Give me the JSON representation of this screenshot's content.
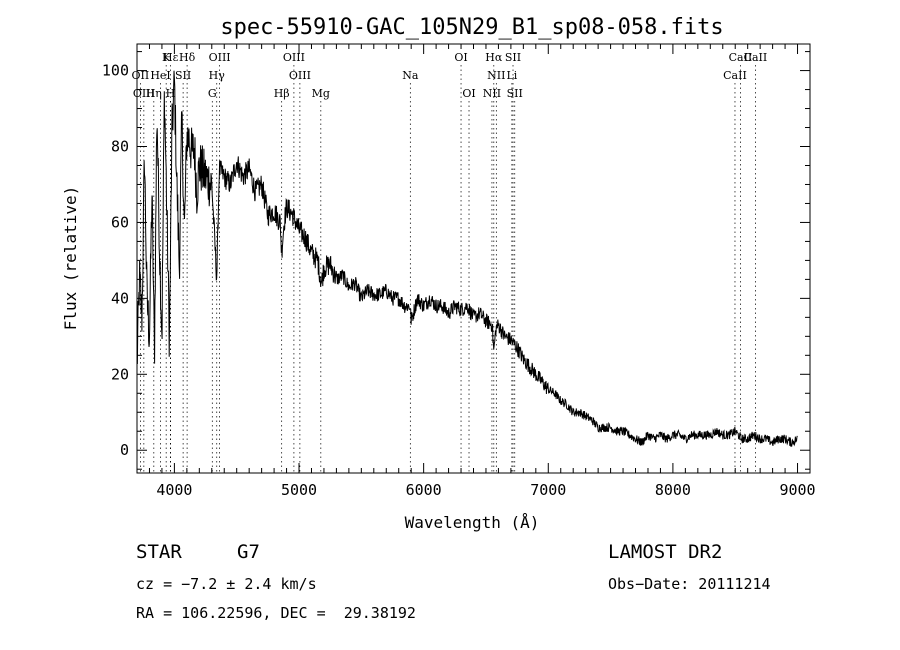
{
  "chart_data": {
    "type": "line",
    "title": "spec-55910-GAC_105N29_B1_sp08-058.fits",
    "xlabel": "Wavelength (Å)",
    "ylabel": "Flux (relative)",
    "xlim": [
      3700,
      9100
    ],
    "ylim": [
      -6,
      107
    ],
    "x_ticks": [
      4000,
      5000,
      6000,
      7000,
      8000,
      9000
    ],
    "y_ticks": [
      0,
      20,
      40,
      60,
      80,
      100
    ],
    "grid": false,
    "series": [
      {
        "x": [
          3700,
          3720,
          3740,
          3760,
          3780,
          3800,
          3820,
          3840,
          3860,
          3880,
          3900,
          3920,
          3940,
          3960,
          3980,
          4000,
          4020,
          4040,
          4060,
          4080,
          4100,
          4120,
          4140,
          4160,
          4180,
          4200,
          4250,
          4300,
          4340,
          4360,
          4400,
          4450,
          4500,
          4550,
          4600,
          4650,
          4700,
          4750,
          4800,
          4850,
          4860,
          4880,
          4900,
          4950,
          5000,
          5050,
          5100,
          5150,
          5180,
          5200,
          5250,
          5300,
          5350,
          5400,
          5450,
          5500,
          5550,
          5600,
          5650,
          5700,
          5750,
          5800,
          5850,
          5890,
          5900,
          5950,
          6000,
          6050,
          6100,
          6150,
          6200,
          6250,
          6300,
          6350,
          6400,
          6450,
          6500,
          6550,
          6563,
          6580,
          6600,
          6650,
          6700,
          6750,
          6800,
          6850,
          6900,
          6950,
          7000,
          7050,
          7100,
          7150,
          7200,
          7250,
          7300,
          7350,
          7400,
          7450,
          7500,
          7550,
          7600,
          7650,
          7700,
          7750,
          7800,
          7850,
          7900,
          7950,
          8000,
          8050,
          8100,
          8150,
          8200,
          8250,
          8300,
          8350,
          8400,
          8450,
          8500,
          8550,
          8600,
          8650,
          8700,
          8750,
          8800,
          8850,
          8900,
          8950,
          9000
        ],
        "values": [
          22,
          45,
          35,
          78,
          40,
          30,
          68,
          25,
          90,
          55,
          30,
          95,
          62,
          28,
          83,
          97,
          70,
          48,
          88,
          57,
          83,
          82,
          78,
          80,
          68,
          75,
          72,
          70,
          45,
          74,
          72,
          70,
          76,
          72,
          74,
          68,
          70,
          62,
          63,
          60,
          52,
          60,
          64,
          62,
          58,
          56,
          52,
          50,
          44,
          48,
          49,
          45,
          46,
          43,
          44,
          40,
          42,
          41,
          41,
          42,
          40,
          40,
          38,
          38,
          34,
          40,
          38,
          40,
          38,
          38,
          36,
          38,
          37,
          38,
          35,
          36,
          34,
          33,
          26,
          32,
          33,
          30,
          29,
          27,
          24,
          22,
          20,
          18,
          16,
          15,
          13,
          12,
          10,
          10,
          9,
          8,
          6,
          6,
          6,
          5,
          5,
          4,
          3,
          2,
          4,
          3,
          4,
          3,
          4,
          4,
          3,
          4,
          4,
          4,
          4,
          5,
          4,
          4,
          5,
          3,
          3,
          4,
          3,
          3,
          2,
          3,
          3,
          2,
          3
        ]
      }
    ],
    "line_markers": [
      {
        "label": "Hε",
        "x": 3970
      },
      {
        "label": "K",
        "x": 3934
      },
      {
        "label": "Hδ",
        "x": 4102
      },
      {
        "label": "OIII",
        "x": 4363
      },
      {
        "label": "OIII",
        "x": 4959
      },
      {
        "label": "OI",
        "x": 6300
      },
      {
        "label": "Hα",
        "x": 6563
      },
      {
        "label": "SII",
        "x": 6717
      },
      {
        "label": "CaII",
        "x": 8542
      },
      {
        "label": "OII",
        "x": 3727
      },
      {
        "label": "HeI",
        "x": 3889
      },
      {
        "label": "SII",
        "x": 4070
      },
      {
        "label": "Hγ",
        "x": 4340
      },
      {
        "label": "OIII",
        "x": 5007
      },
      {
        "label": "Na",
        "x": 5893
      },
      {
        "label": "NII",
        "x": 6583
      },
      {
        "label": "Li",
        "x": 6708
      },
      {
        "label": "CaII",
        "x": 8498
      },
      {
        "label": "OIII",
        "x": 3755
      },
      {
        "label": "Hη",
        "x": 3835
      },
      {
        "label": "H",
        "x": 3968
      },
      {
        "label": "G",
        "x": 4304
      },
      {
        "label": "Hβ",
        "x": 4861
      },
      {
        "label": "Mg",
        "x": 5175
      },
      {
        "label": "OI",
        "x": 6364
      },
      {
        "label": "NII",
        "x": 6548
      },
      {
        "label": "SII",
        "x": 6731
      },
      {
        "label": "CaII",
        "x": 8662
      }
    ]
  },
  "info": {
    "class_label": "STAR",
    "subclass": "G7",
    "survey": "LAMOST DR2",
    "cz": "cz = −7.2 ± 2.4 km/s",
    "obs_date": "Obs−Date: 20111214",
    "coords": "RA = 106.22596, DEC =  29.38192"
  }
}
